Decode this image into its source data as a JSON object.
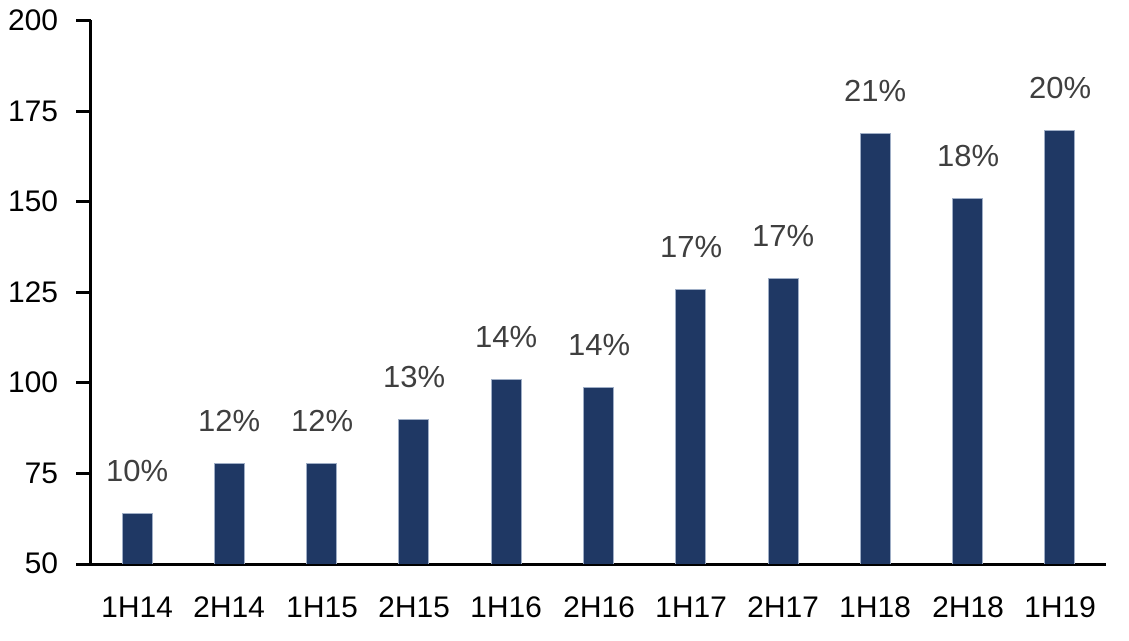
{
  "chart_data": {
    "type": "bar",
    "title": "",
    "xlabel": "",
    "ylabel": "",
    "categories": [
      "1H14",
      "2H14",
      "1H15",
      "2H15",
      "1H16",
      "2H16",
      "1H17",
      "2H17",
      "1H18",
      "2H18",
      "1H19"
    ],
    "values": [
      64,
      78,
      78,
      90,
      101,
      99,
      126,
      129,
      169,
      151,
      170
    ],
    "bar_labels": [
      "10%",
      "12%",
      "12%",
      "13%",
      "14%",
      "14%",
      "17%",
      "17%",
      "21%",
      "18%",
      "20%"
    ],
    "ylim": [
      50,
      200
    ],
    "yticks": [
      50,
      75,
      100,
      125,
      150,
      175,
      200
    ],
    "grid": false,
    "legend": false,
    "colors": {
      "bar_fill": "#1F3864",
      "bar_border": "#9FAEC6",
      "data_label": "#3F3F3F",
      "axis_text": "#000000",
      "axis_line": "#000000",
      "background": "#FFFFFF"
    }
  }
}
